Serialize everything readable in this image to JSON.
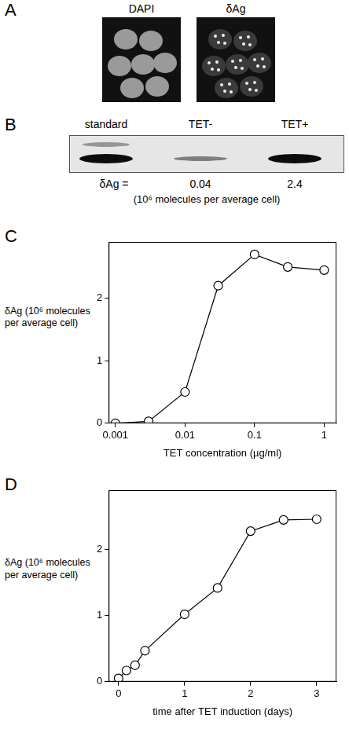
{
  "panels": [
    {
      "panel": "A",
      "images": [
        "DAPI",
        "δAg"
      ]
    },
    {
      "panel": "B",
      "lanes": [
        "standard",
        "TET-",
        "TET+"
      ],
      "measure": "δAg =",
      "values": [
        null,
        0.04,
        2.4
      ],
      "unit": "(10⁶ molecules per average cell)"
    }
  ],
  "chart_data": [
    {
      "panel": "C",
      "type": "line",
      "x_label": "TET concentration (µg/ml)",
      "y_label": "δAg (10⁶ molecules per average cell)",
      "x": [
        0.001,
        0.003,
        0.01,
        0.03,
        0.1,
        0.3,
        1
      ],
      "values": [
        0,
        0.03,
        0.5,
        2.2,
        2.7,
        2.5,
        2.45
      ],
      "color": "#000000",
      "marker": "circle",
      "log": "x",
      "grid": false,
      "xlim": [
        0.0008,
        1.5
      ],
      "xticks": [
        0.001,
        0.01,
        0.1,
        1
      ],
      "ylim": [
        0,
        2.9
      ],
      "yticks": [
        0,
        1,
        2
      ]
    },
    {
      "panel": "D",
      "type": "line",
      "x_label": "time after TET induction (days)",
      "y_label": "δAg (10⁶ molecules per average cell)",
      "x": [
        0,
        0.12,
        0.25,
        0.4,
        1,
        1.5,
        2,
        2.5,
        3
      ],
      "values": [
        0.05,
        0.17,
        0.25,
        0.47,
        1.02,
        1.42,
        2.28,
        2.45,
        2.46
      ],
      "color": "#000000",
      "marker": "circle",
      "grid": false,
      "xlim": [
        -0.15,
        3.3
      ],
      "xticks": [
        0,
        1,
        2,
        3
      ],
      "ylim": [
        0,
        2.9
      ],
      "yticks": [
        0,
        1,
        2
      ]
    }
  ]
}
